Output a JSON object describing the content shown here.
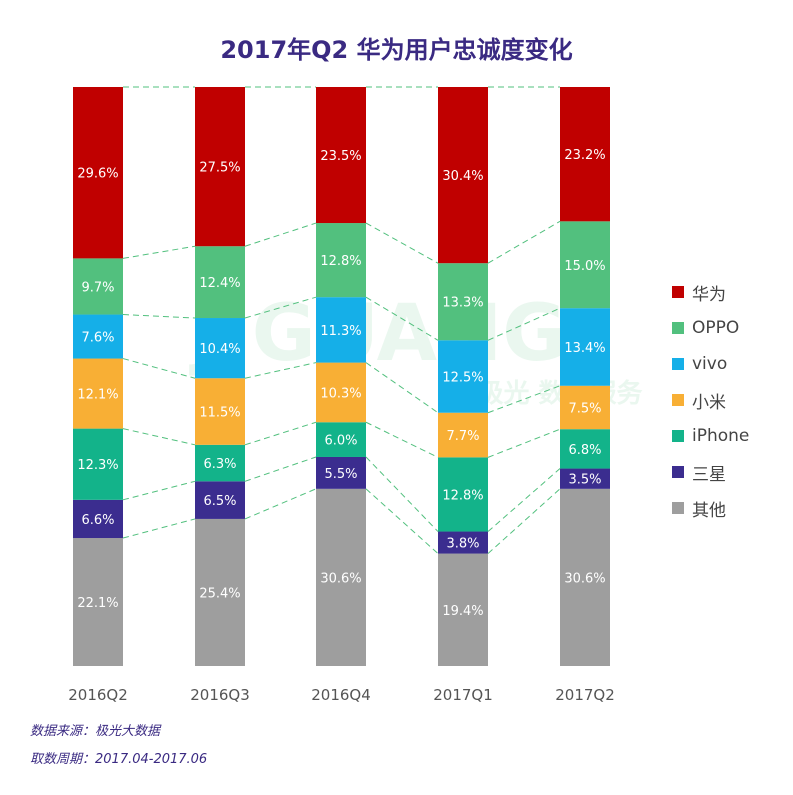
{
  "title": "2017年Q2 华为用户忠诚度变化",
  "source_line": "数据来源：极光大数据",
  "period_line": "取数周期：2017.04-2017.06",
  "watermark": {
    "brand": "JIGUANG",
    "chinese": "极光 数据服务"
  },
  "chart_data": {
    "type": "bar",
    "stacked": true,
    "percent": true,
    "title": "2017年Q2 华为用户忠诚度变化",
    "categories": [
      "2016Q2",
      "2016Q3",
      "2016Q4",
      "2017Q1",
      "2017Q2"
    ],
    "series": [
      {
        "name": "其他",
        "color": "#9e9e9e",
        "values": [
          22.1,
          25.4,
          30.6,
          19.4,
          30.6
        ]
      },
      {
        "name": "三星",
        "color": "#3b2d8f",
        "values": [
          6.6,
          6.5,
          5.5,
          3.8,
          3.5
        ]
      },
      {
        "name": "iPhone",
        "color": "#13b38a",
        "values": [
          12.3,
          6.3,
          6.0,
          12.8,
          6.8
        ]
      },
      {
        "name": "小米",
        "color": "#f8af35",
        "values": [
          12.1,
          11.5,
          10.3,
          7.7,
          7.5
        ]
      },
      {
        "name": "vivo",
        "color": "#15afe8",
        "values": [
          7.6,
          10.4,
          11.3,
          12.5,
          13.4
        ]
      },
      {
        "name": "OPPO",
        "color": "#52c07e",
        "values": [
          9.7,
          12.4,
          12.8,
          13.3,
          15.0
        ]
      },
      {
        "name": "华为",
        "color": "#c00000",
        "values": [
          29.6,
          27.5,
          23.5,
          30.4,
          23.2
        ]
      }
    ],
    "legend_order": [
      "华为",
      "OPPO",
      "vivo",
      "小米",
      "iPhone",
      "三星",
      "其他"
    ],
    "legend_position": "right",
    "connector_lines": true,
    "connector_color": "#52c07e",
    "grid": false
  }
}
